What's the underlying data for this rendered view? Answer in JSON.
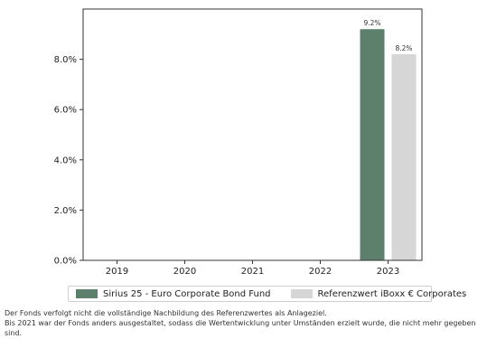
{
  "chart_data": {
    "type": "bar",
    "categories": [
      "2019",
      "2020",
      "2021",
      "2022",
      "2023"
    ],
    "series": [
      {
        "name": "Sirius 25 - Euro Corporate Bond Fund",
        "values": [
          null,
          null,
          null,
          null,
          9.2
        ],
        "labels": [
          "",
          "",
          "",
          "",
          "9.2%"
        ],
        "color": "#5c806b"
      },
      {
        "name": "Referenzwert iBoxx € Corporates",
        "values": [
          null,
          null,
          null,
          null,
          8.2
        ],
        "labels": [
          "",
          "",
          "",
          "",
          "8.2%"
        ],
        "color": "#d6d6d6"
      }
    ],
    "ylim": [
      0,
      10
    ],
    "yticks": [
      0,
      2,
      4,
      6,
      8
    ],
    "ytick_labels": [
      "0.0%",
      "2.0%",
      "4.0%",
      "6.0%",
      "8.0%"
    ],
    "title": "",
    "xlabel": "",
    "ylabel": "",
    "grid": false,
    "legend_position": "bottom"
  },
  "footnotes": [
    "Der Fonds verfolgt nicht die vollständige Nachbildung des Referenzwertes als Anlageziel.",
    "Bis 2021 war der Fonds anders ausgestaltet, sodass die Wertentwicklung unter Umständen erzielt wurde, die nicht mehr gegeben sind."
  ]
}
